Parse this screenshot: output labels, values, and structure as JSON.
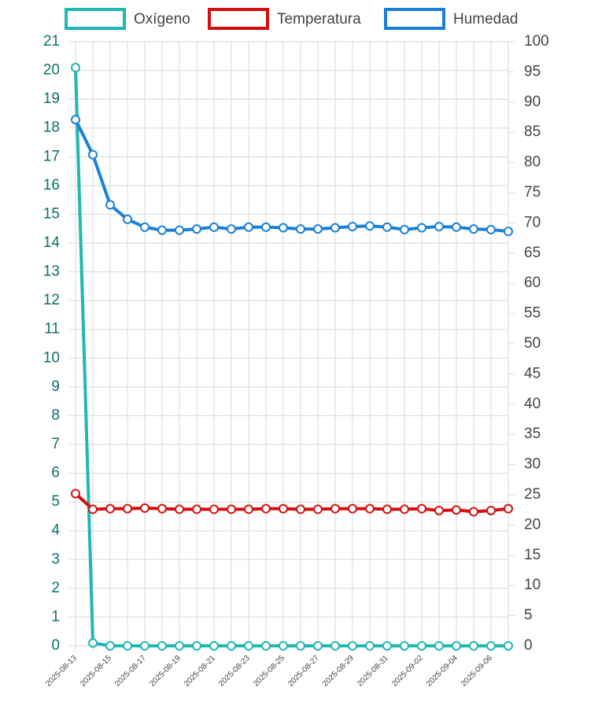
{
  "chart_data": {
    "type": "line",
    "categories": [
      "2025-08-13",
      null,
      "2025-08-15",
      null,
      "2025-08-17",
      null,
      "2025-08-19",
      null,
      "2025-08-21",
      null,
      "2025-08-23",
      null,
      "2025-08-25",
      null,
      "2025-08-27",
      null,
      "2025-08-29",
      null,
      "2025-08-31",
      null,
      "2025-09-02",
      null,
      "2025-09-04",
      null,
      "2025-09-06",
      null
    ],
    "series": [
      {
        "name": "Oxígeno",
        "color": "#1fb8b3",
        "axis": "y",
        "values": [
          20.1,
          0.1,
          0,
          0,
          0,
          0,
          0,
          0,
          0,
          0,
          0,
          0,
          0,
          0,
          0,
          0,
          0,
          0,
          0,
          0,
          0,
          0,
          0,
          0,
          0,
          0
        ]
      },
      {
        "name": "Temperatura",
        "color": "#d40f0f",
        "axis": "y2",
        "values": [
          25.2,
          22.6,
          22.7,
          22.7,
          22.8,
          22.7,
          22.6,
          22.6,
          22.6,
          22.6,
          22.6,
          22.7,
          22.7,
          22.6,
          22.6,
          22.7,
          22.7,
          22.7,
          22.6,
          22.6,
          22.7,
          22.4,
          22.5,
          22.2,
          22.4,
          22.7
        ]
      },
      {
        "name": "Humedad",
        "color": "#1a80d6",
        "axis": "y2",
        "values": [
          87.1,
          81.3,
          73.0,
          70.6,
          69.3,
          68.8,
          68.8,
          69.0,
          69.3,
          69.0,
          69.3,
          69.3,
          69.2,
          69.0,
          69.0,
          69.2,
          69.4,
          69.5,
          69.3,
          68.9,
          69.2,
          69.4,
          69.3,
          69.0,
          68.9,
          68.6
        ]
      }
    ],
    "ylim": [
      0,
      21
    ],
    "yticks": [
      0,
      1,
      2,
      3,
      4,
      5,
      6,
      7,
      8,
      9,
      10,
      11,
      12,
      13,
      14,
      15,
      16,
      17,
      18,
      19,
      20,
      21
    ],
    "y2lim": [
      0,
      100
    ],
    "y2ticks": [
      0,
      5,
      10,
      15,
      20,
      25,
      30,
      35,
      40,
      45,
      50,
      55,
      60,
      65,
      70,
      75,
      80,
      85,
      90,
      95,
      100
    ],
    "grid": true,
    "legend": "top"
  }
}
